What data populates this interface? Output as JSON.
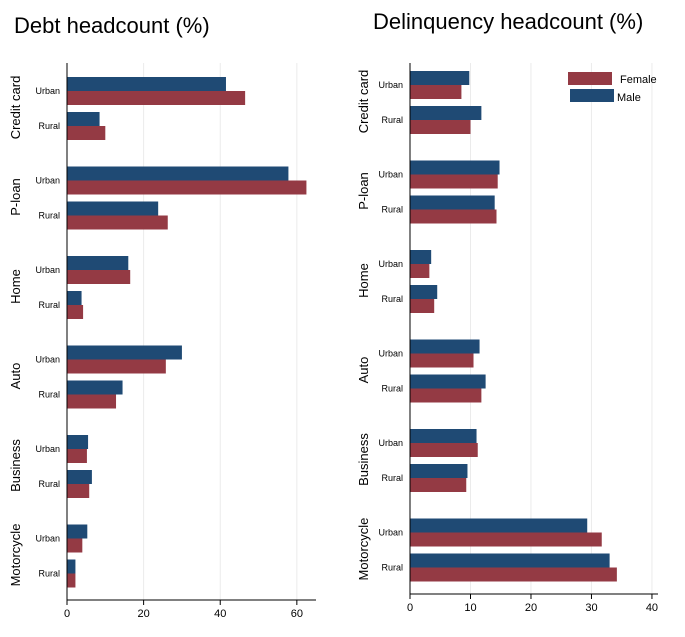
{
  "colors": {
    "male": "#1f4a74",
    "female": "#943a44",
    "grid": "#ebebeb",
    "axis": "#000000"
  },
  "chart_data": [
    {
      "type": "bar",
      "orientation": "horizontal",
      "title": "Debt headcount (%)",
      "xlabel": "",
      "ylabel": "",
      "xlim": [
        0,
        65
      ],
      "xticks": [
        0,
        20,
        40,
        60
      ],
      "grid": true,
      "groups": [
        "Credit card",
        "P-loan",
        "Home",
        "Auto",
        "Business",
        "Motorcycle"
      ],
      "subgroups": [
        "Urban",
        "Rural"
      ],
      "series": [
        {
          "name": "Male",
          "values": [
            [
              41.5,
              8.5
            ],
            [
              57.8,
              23.8
            ],
            [
              16.0,
              3.8
            ],
            [
              30.0,
              14.5
            ],
            [
              5.5,
              6.5
            ],
            [
              5.3,
              2.2
            ]
          ]
        },
        {
          "name": "Female",
          "values": [
            [
              46.5,
              10.0
            ],
            [
              62.5,
              26.3
            ],
            [
              16.5,
              4.2
            ],
            [
              25.8,
              12.8
            ],
            [
              5.2,
              5.8
            ],
            [
              4.0,
              2.2
            ]
          ]
        }
      ]
    },
    {
      "type": "bar",
      "orientation": "horizontal",
      "title": "Delinquency headcount (%)",
      "xlabel": "",
      "ylabel": "",
      "xlim": [
        0,
        41
      ],
      "xticks": [
        0,
        10,
        20,
        30,
        40
      ],
      "grid": true,
      "legend": "top-right",
      "groups": [
        "Credit card",
        "P-loan",
        "Home",
        "Auto",
        "Business",
        "Motorcycle"
      ],
      "subgroups": [
        "Urban",
        "Rural"
      ],
      "series": [
        {
          "name": "Male",
          "values": [
            [
              9.8,
              11.8
            ],
            [
              14.8,
              14.0
            ],
            [
              3.5,
              4.5
            ],
            [
              11.5,
              12.5
            ],
            [
              11.0,
              9.5
            ],
            [
              29.3,
              33.0
            ]
          ]
        },
        {
          "name": "Female",
          "values": [
            [
              8.5,
              10.0
            ],
            [
              14.5,
              14.3
            ],
            [
              3.2,
              4.0
            ],
            [
              10.5,
              11.8
            ],
            [
              11.2,
              9.3
            ],
            [
              31.7,
              34.2
            ]
          ]
        }
      ]
    }
  ],
  "legend": {
    "items": [
      {
        "label": "Female",
        "series": "Female"
      },
      {
        "label": "Male",
        "series": "Male"
      }
    ]
  }
}
